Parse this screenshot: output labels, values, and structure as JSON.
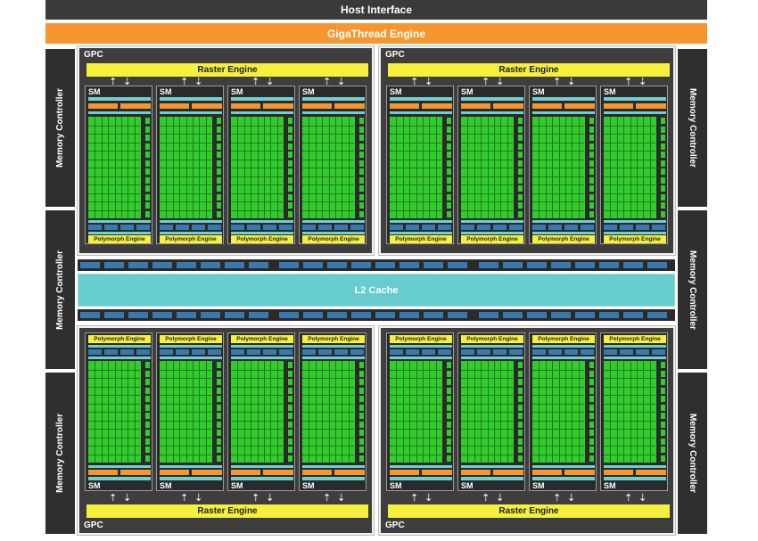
{
  "host_interface": "Host Interface",
  "gigathread_engine": "GigaThread Engine",
  "memory_controller_label": "Memory Controller",
  "gpc_label": "GPC",
  "raster_engine_label": "Raster Engine",
  "sm_label": "SM",
  "polymorph_engine_label": "Polymorph Engine",
  "l2_cache": "L2 Cache",
  "counts": {
    "gpcs": 4,
    "sms_per_gpc": 4,
    "memory_controllers": 6
  },
  "colors": {
    "dark": "#3a3a3a",
    "orange": "#f7962e",
    "yellow": "#f5f03c",
    "green": "#33cc2e",
    "teal": "#6fd0d2",
    "blue": "#3a78b0"
  }
}
